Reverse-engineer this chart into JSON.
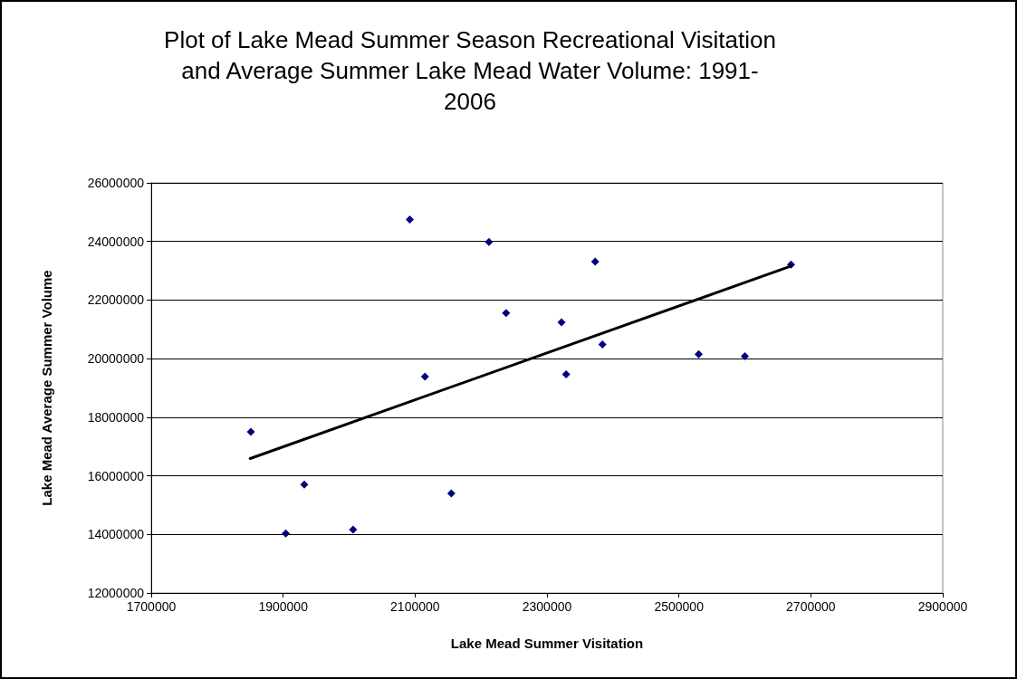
{
  "chart_data": {
    "type": "scatter",
    "title": "Plot of Lake Mead Summer Season Recreational Visitation\nand Average Summer Lake Mead Water Volume: 1991-\n2006",
    "xlabel": "Lake Mead Summer Visitation",
    "ylabel": "Lake Mead Average Summer Volume",
    "xlim": [
      1700000,
      2900000
    ],
    "xticks": [
      1700000,
      1900000,
      2100000,
      2300000,
      2500000,
      2700000,
      2900000
    ],
    "ylim": [
      12000000,
      26000000
    ],
    "yticks": [
      12000000,
      14000000,
      16000000,
      18000000,
      20000000,
      22000000,
      24000000,
      26000000
    ],
    "grid": "y",
    "marker": "diamond",
    "series": [
      {
        "color": "#000080",
        "x": [
          1851000,
          1904000,
          1932000,
          2006000,
          2092000,
          2115000,
          2155000,
          2212000,
          2238000,
          2322000,
          2329000,
          2373000,
          2384000,
          2530000,
          2600000,
          2670000
        ],
        "values": [
          17500000,
          14030000,
          15700000,
          14160000,
          24750000,
          19390000,
          15400000,
          23980000,
          21560000,
          21240000,
          19460000,
          23310000,
          20480000,
          20150000,
          20080000,
          23210000
        ]
      },
      {
        "type": "line",
        "marker": "none",
        "color": "#000000",
        "x": [
          1850000,
          2670000
        ],
        "values": [
          16590000,
          23160000
        ]
      }
    ]
  }
}
